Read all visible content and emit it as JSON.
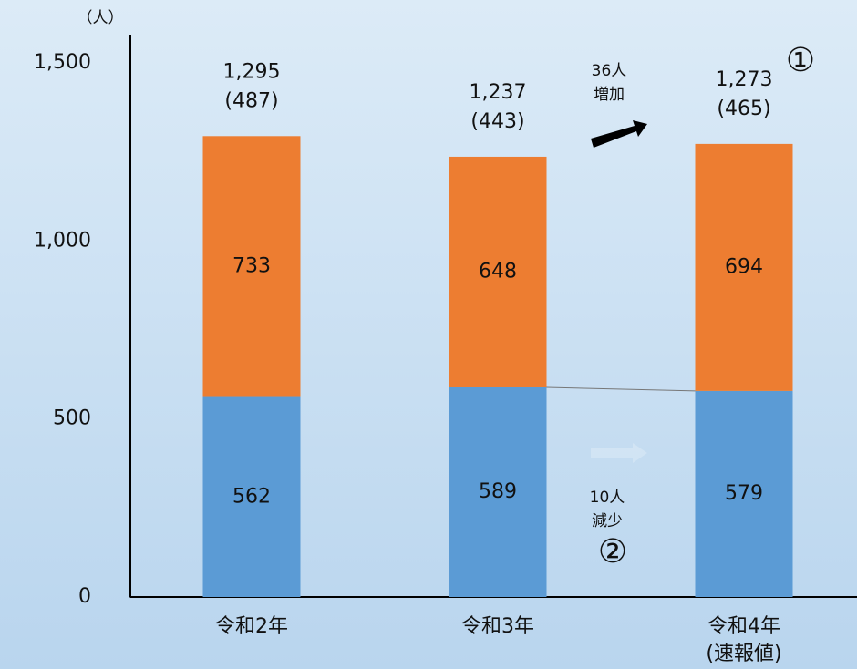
{
  "chart_data": {
    "type": "stacked_bar",
    "unit_label": "（人）",
    "categories": [
      "令和2年",
      "令和3年",
      "令和4年"
    ],
    "category_notes": [
      null,
      null,
      "(速報値)"
    ],
    "series": [
      {
        "name": "series-1",
        "color": "#5b9bd5",
        "values": [
          562,
          589,
          579
        ]
      },
      {
        "name": "series-2",
        "color": "#ed7d31",
        "values": [
          733,
          648,
          694
        ]
      }
    ],
    "totals": [
      {
        "value": 1295,
        "label": "1,295"
      },
      {
        "value": 1237,
        "label": "1,237"
      },
      {
        "value": 1273,
        "label": "1,273"
      }
    ],
    "total_notes": [
      "(487)",
      "(443)",
      "(465)"
    ],
    "ylim": [
      0,
      1580
    ],
    "yticks": [
      0,
      500,
      {
        "value": 1000,
        "label": "1,000"
      },
      {
        "value": 1500,
        "label": "1,500"
      }
    ],
    "annotations": {
      "up_count": "36人",
      "up_text": "増加",
      "down_count": "10人",
      "down_text": "減少",
      "marker_1": "①",
      "marker_2": "②"
    }
  }
}
